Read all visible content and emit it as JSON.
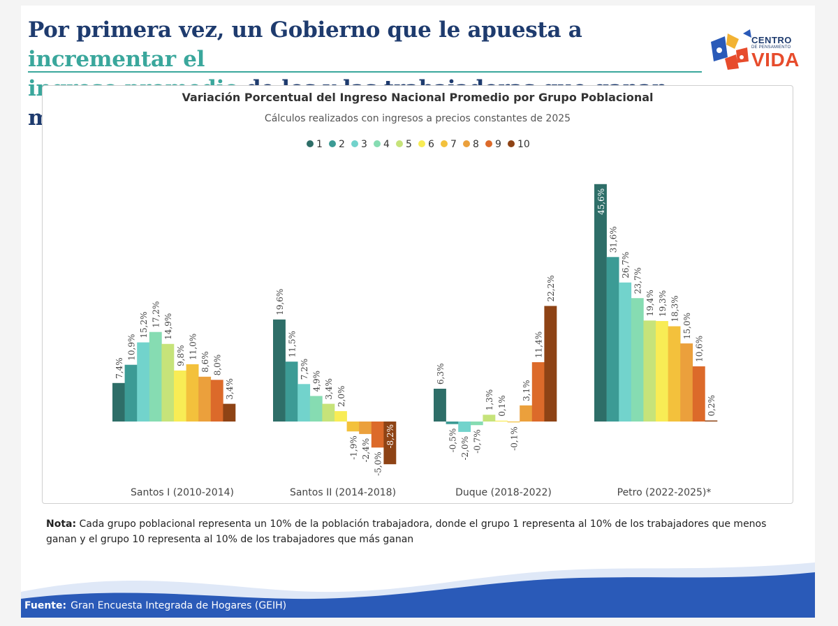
{
  "headline": {
    "part1": "Por primera vez, un Gobierno que le apuesta a ",
    "highlight1": "incrementar el",
    "highlight2": "ingreso promedio",
    "part2": " de los y las trabajadoras que ganan menos"
  },
  "logo": {
    "line1": "CENTRO",
    "line2": "DE PENSAMIENTO",
    "line3": "VIDA",
    "colors": [
      "#1e3b6e",
      "#e74c2c",
      "#f2b233",
      "#3aa79c"
    ]
  },
  "note": {
    "label": "Nota:",
    "text": "Cada grupo poblacional representa un 10% de la población trabajadora, donde el grupo 1 representa al 10% de los trabajadores que menos ganan y el grupo 10 representa al 10% de los trabajadores que más ganan"
  },
  "source": {
    "label": "Fuente:",
    "text": "Gran Encuesta Integrada de Hogares (GEIH)"
  },
  "colors": {
    "headline": "#1e3b6e",
    "accent": "#3aa79c",
    "wave": "#2a5ab8"
  },
  "chart_data": {
    "type": "bar",
    "title": "Variación Porcentual del Ingreso Nacional Promedio por Grupo Poblacional",
    "subtitle": "Cálculos realizados con ingresos a precios constantes de 2025",
    "categories": [
      "Santos I (2010-2014)",
      "Santos II (2014-2018)",
      "Duque (2018-2022)",
      "Petro (2022-2025)*"
    ],
    "legend_position": "top-center",
    "grid": false,
    "ylim": [
      -8.2,
      45.6
    ],
    "series": [
      {
        "name": "1",
        "color": "#2e6e68",
        "values": [
          7.4,
          19.6,
          6.3,
          45.6
        ],
        "labels": [
          "7,4%",
          "19,6%",
          "6,3%",
          "45,6%"
        ]
      },
      {
        "name": "2",
        "color": "#3c9b95",
        "values": [
          10.9,
          11.5,
          -0.5,
          31.6
        ],
        "labels": [
          "10,9%",
          "11,5%",
          "-0,5%",
          "31,6%"
        ]
      },
      {
        "name": "3",
        "color": "#72d3cc",
        "values": [
          15.2,
          7.2,
          -2.0,
          26.7
        ],
        "labels": [
          "15,2%",
          "7,2%",
          "-2,0%",
          "26,7%"
        ]
      },
      {
        "name": "4",
        "color": "#86dcb2",
        "values": [
          17.2,
          4.9,
          -0.7,
          23.7
        ],
        "labels": [
          "17,2%",
          "4,9%",
          "-0,7%",
          "23,7%"
        ]
      },
      {
        "name": "5",
        "color": "#c6e37a",
        "values": [
          14.9,
          3.4,
          1.3,
          19.4
        ],
        "labels": [
          "14,9%",
          "3,4%",
          "1,3%",
          "19,4%"
        ]
      },
      {
        "name": "6",
        "color": "#f8ec55",
        "values": [
          9.8,
          2.0,
          0.1,
          19.3
        ],
        "labels": [
          "9,8%",
          "2,0%",
          "0,1%",
          "19,3%"
        ]
      },
      {
        "name": "7",
        "color": "#f3c13c",
        "values": [
          11.0,
          -1.9,
          -0.1,
          18.3
        ],
        "labels": [
          "11,0%",
          "-1,9%",
          "-0,1%",
          "18,3%"
        ]
      },
      {
        "name": "8",
        "color": "#eba03c",
        "values": [
          8.6,
          -2.4,
          3.1,
          15.0
        ],
        "labels": [
          "8,6%",
          "-2,4%",
          "3,1%",
          "15,0%"
        ]
      },
      {
        "name": "9",
        "color": "#dc6a2a",
        "values": [
          8.0,
          -5.0,
          11.4,
          10.6
        ],
        "labels": [
          "8,0%",
          "-5,0%",
          "11,4%",
          "10,6%"
        ]
      },
      {
        "name": "10",
        "color": "#8e4315",
        "values": [
          3.4,
          -8.2,
          22.2,
          0.2
        ],
        "labels": [
          "3,4%",
          "-8,2%",
          "22,2%",
          "0,2%"
        ]
      }
    ]
  }
}
